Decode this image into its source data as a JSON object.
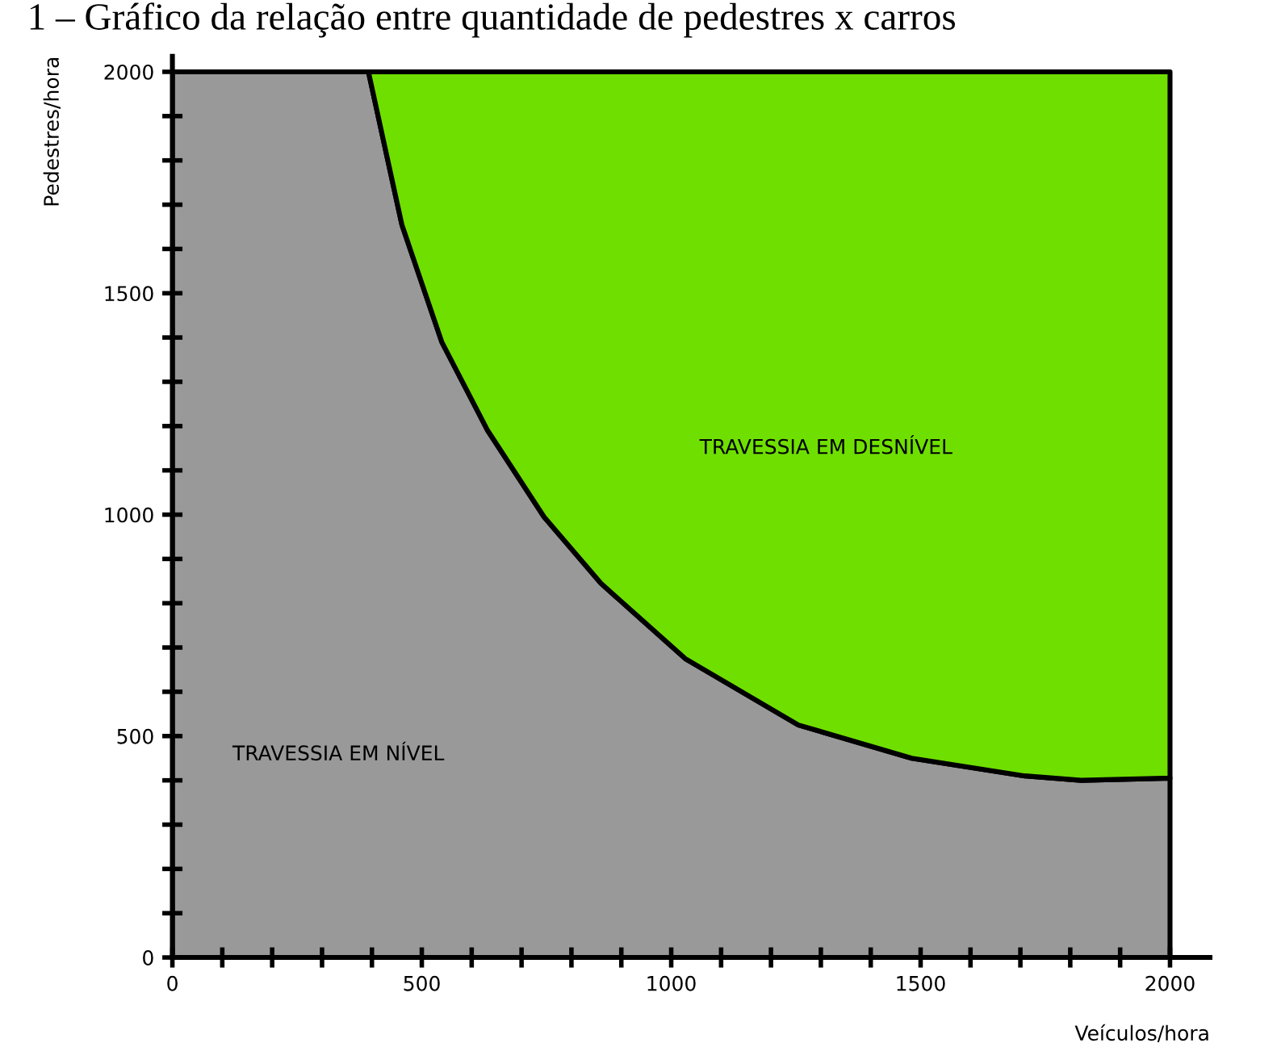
{
  "chart_data": {
    "type": "area",
    "stacked": true,
    "title": "1 – Gráfico da relação entre quantidade de pedestres x carros",
    "xlabel": "Veículos/hora",
    "ylabel": "Pedestres/hora",
    "x": [
      0,
      393,
      460,
      540,
      632,
      745,
      859,
      1028,
      1255,
      1482,
      1709,
      1822,
      2000
    ],
    "series": [
      {
        "color": "#999999",
        "values": [
          2000,
          2000,
          1655,
          1390,
          1190,
          995,
          845,
          675,
          525,
          450,
          410,
          400,
          405
        ]
      },
      {
        "color": "#6fdf00",
        "values": [
          0,
          0,
          345,
          610,
          810,
          1005,
          1155,
          1325,
          1475,
          1550,
          1590,
          1600,
          1595
        ]
      }
    ],
    "xlim": [
      0,
      2080
    ],
    "ylim": [
      0,
      2035
    ],
    "xticks": [
      0,
      {
        "value": 100,
        "label": null
      },
      {
        "value": 200,
        "label": null
      },
      {
        "value": 300,
        "label": null
      },
      {
        "value": 400,
        "label": null
      },
      500,
      {
        "value": 600,
        "label": null
      },
      {
        "value": 700,
        "label": null
      },
      {
        "value": 800,
        "label": null
      },
      {
        "value": 900,
        "label": null
      },
      1000,
      {
        "value": 1100,
        "label": null
      },
      {
        "value": 1200,
        "label": null
      },
      {
        "value": 1300,
        "label": null
      },
      {
        "value": 1400,
        "label": null
      },
      1500,
      {
        "value": 1600,
        "label": null
      },
      {
        "value": 1700,
        "label": null
      },
      {
        "value": 1800,
        "label": null
      },
      {
        "value": 1900,
        "label": null
      },
      2000
    ],
    "yticks": [
      0,
      {
        "value": 100,
        "label": null
      },
      {
        "value": 200,
        "label": null
      },
      {
        "value": 300,
        "label": null
      },
      {
        "value": 400,
        "label": null
      },
      500,
      {
        "value": 600,
        "label": null
      },
      {
        "value": 700,
        "label": null
      },
      {
        "value": 800,
        "label": null
      },
      {
        "value": 900,
        "label": null
      },
      1000,
      {
        "value": 1100,
        "label": null
      },
      {
        "value": 1200,
        "label": null
      },
      {
        "value": 1300,
        "label": null
      },
      {
        "value": 1400,
        "label": null
      },
      1500,
      {
        "value": 1600,
        "label": null
      },
      {
        "value": 1700,
        "label": null
      },
      {
        "value": 1800,
        "label": null
      },
      {
        "value": 1900,
        "label": null
      },
      2000
    ],
    "annotations": [
      "TRAVESSIA EM NÍVEL",
      "TRAVESSIA EM DESNÍVEL"
    ],
    "grid": false,
    "legend": false
  }
}
